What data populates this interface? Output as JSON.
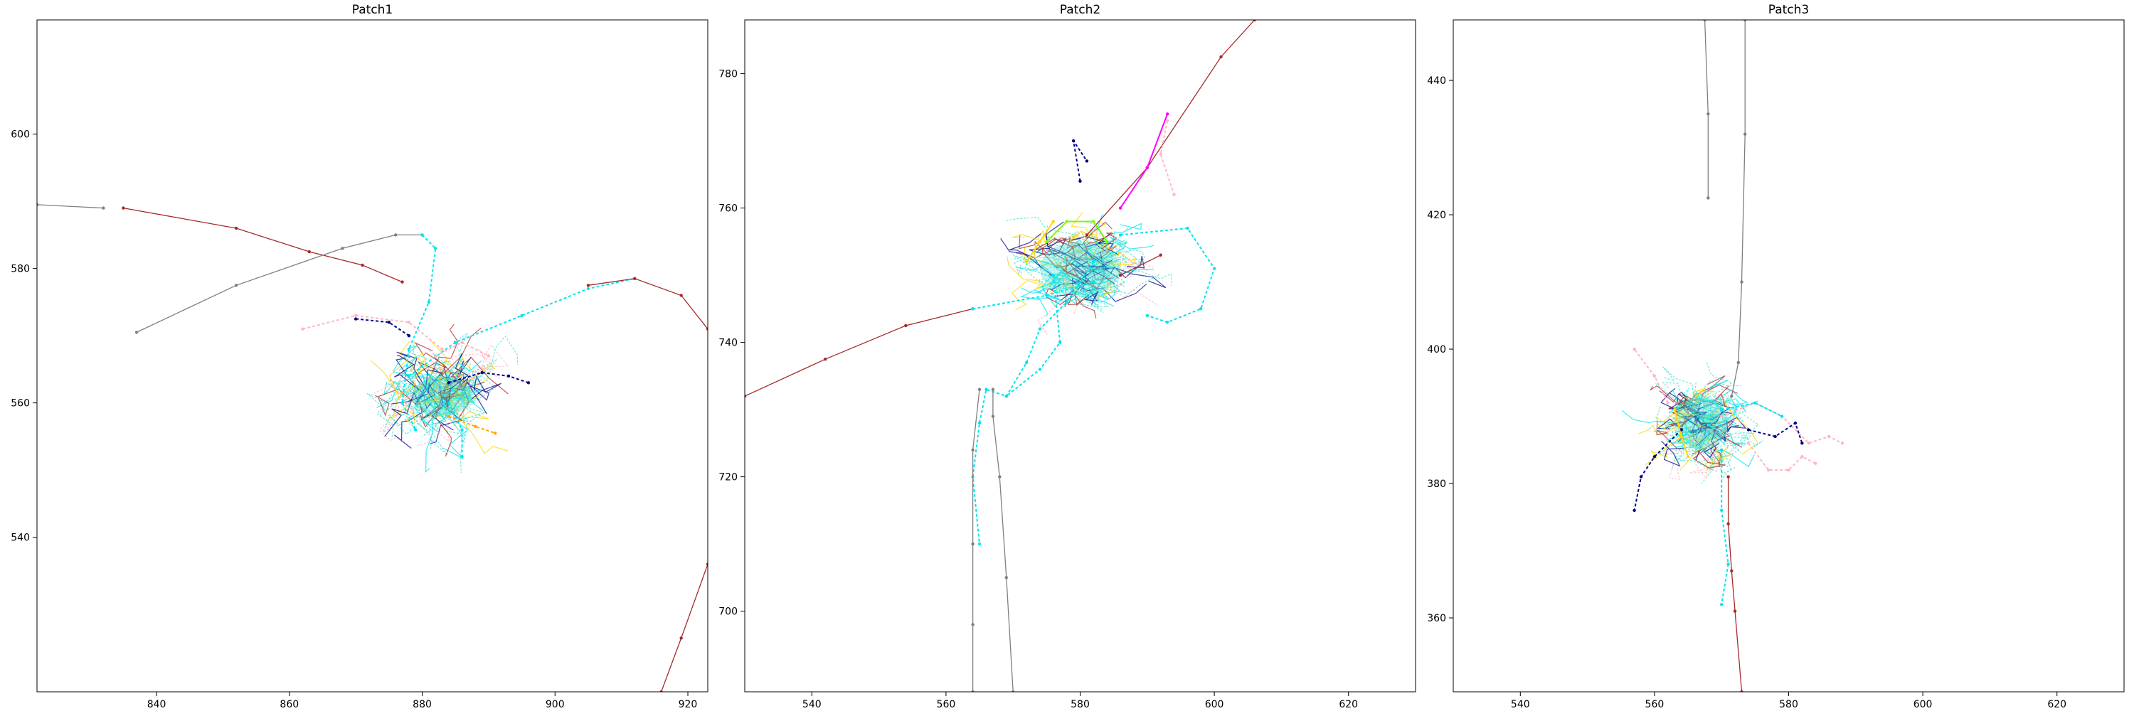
{
  "chart_data": [
    {
      "type": "line",
      "title": "Patch1",
      "xlim": [
        822,
        923
      ],
      "ylim": [
        517,
        617
      ],
      "xticks": [
        840,
        860,
        880,
        900,
        920
      ],
      "yticks": [
        540,
        560,
        580,
        600
      ],
      "cluster": {
        "center": [
          883,
          561
        ],
        "core_radius": [
          4.5,
          3
        ],
        "spread_radius": [
          9,
          9
        ]
      },
      "series": [
        {
          "color": "#7f7f7f",
          "points": [
            [
              822,
              589.5
            ],
            [
              832,
              589
            ]
          ]
        },
        {
          "color": "#a52a2a",
          "points": [
            [
              835,
              589
            ],
            [
              852,
              586
            ],
            [
              863,
              582.5
            ],
            [
              871,
              580.5
            ],
            [
              877,
              578
            ]
          ]
        },
        {
          "color": "#7f7f7f",
          "points": [
            [
              837,
              570.5
            ],
            [
              852,
              577.5
            ],
            [
              868,
              583
            ],
            [
              876,
              585
            ],
            [
              880,
              585
            ]
          ]
        },
        {
          "color": "#00e5ee",
          "points": [
            [
              880,
              585
            ],
            [
              882,
              583
            ],
            [
              881,
              575
            ],
            [
              878,
              568
            ],
            [
              877,
              560
            ],
            [
              879,
              556
            ]
          ]
        },
        {
          "color": "#00e5ee",
          "points": [
            [
              878,
              564
            ],
            [
              885,
              569
            ],
            [
              895,
              573
            ],
            [
              905,
              577
            ],
            [
              912,
              578.5
            ]
          ]
        },
        {
          "color": "#a52a2a",
          "points": [
            [
              905,
              577.5
            ],
            [
              912,
              578.5
            ],
            [
              919,
              576
            ],
            [
              923,
              571
            ]
          ]
        },
        {
          "color": "#a52a2a",
          "points": [
            [
              916,
              517
            ],
            [
              919,
              525
            ],
            [
              923,
              536
            ]
          ]
        },
        {
          "color": "#ffb6c1",
          "points": [
            [
              862,
              571
            ],
            [
              870,
              573
            ],
            [
              878,
              572
            ],
            [
              883,
              568
            ]
          ]
        },
        {
          "color": "#00008b",
          "points": [
            [
              870,
              572.5
            ],
            [
              875,
              572
            ],
            [
              878,
              570
            ]
          ]
        },
        {
          "color": "#00008b",
          "points": [
            [
              884,
              563
            ],
            [
              889,
              564.5
            ],
            [
              893,
              564
            ],
            [
              896,
              563
            ]
          ]
        },
        {
          "color": "#ffa500",
          "points": [
            [
              884,
              558
            ],
            [
              888,
              556.5
            ],
            [
              891,
              555.5
            ]
          ]
        },
        {
          "color": "#00e5ee",
          "points": [
            [
              884,
              560
            ],
            [
              886,
              556
            ],
            [
              886,
              552
            ]
          ]
        },
        {
          "color": "#ffb6c1",
          "points": [
            [
              882,
              567
            ],
            [
              886,
              569
            ],
            [
              890,
              567
            ]
          ]
        }
      ]
    },
    {
      "type": "line",
      "title": "Patch2",
      "xlim": [
        530,
        630
      ],
      "ylim": [
        688,
        788
      ],
      "xticks": [
        540,
        560,
        580,
        600,
        620
      ],
      "yticks": [
        700,
        720,
        740,
        760,
        780
      ],
      "cluster": {
        "center": [
          580,
          751
        ],
        "core_radius": [
          6,
          4
        ],
        "spread_radius": [
          9,
          6
        ]
      },
      "series": [
        {
          "color": "#a52a2a",
          "points": [
            [
              530,
              732
            ],
            [
              542,
              737.5
            ],
            [
              554,
              742.5
            ],
            [
              564,
              745
            ]
          ]
        },
        {
          "color": "#00e5ee",
          "points": [
            [
              564,
              745
            ],
            [
              575,
              747
            ],
            [
              582,
              749
            ]
          ]
        },
        {
          "color": "#a52a2a",
          "points": [
            [
              586,
              750
            ],
            [
              592,
              753
            ]
          ]
        },
        {
          "color": "#a52a2a",
          "points": [
            [
              581,
              756
            ],
            [
              590,
              766
            ],
            [
              601,
              782.5
            ],
            [
              606,
              788
            ]
          ]
        },
        {
          "color": "#ff00ff",
          "points": [
            [
              586,
              760
            ],
            [
              590,
              766
            ],
            [
              593,
              774
            ]
          ]
        },
        {
          "color": "#ffb6c1",
          "points": [
            [
              593,
              773
            ],
            [
              592,
              768
            ],
            [
              594,
              762
            ]
          ]
        },
        {
          "color": "#00e5ee",
          "points": [
            [
              582,
              752
            ],
            [
              578,
              746
            ],
            [
              574,
              742
            ],
            [
              572,
              737
            ],
            [
              569,
              732
            ],
            [
              566,
              733
            ],
            [
              565,
              728
            ],
            [
              564,
              720
            ],
            [
              565,
              710
            ]
          ]
        },
        {
          "color": "#00e5ee",
          "points": [
            [
              576,
              750
            ],
            [
              577,
              740
            ],
            [
              574,
              736
            ],
            [
              569,
              732
            ]
          ]
        },
        {
          "color": "#00e5ee",
          "points": [
            [
              586,
              756
            ],
            [
              596,
              757
            ],
            [
              600,
              751
            ],
            [
              598,
              745
            ],
            [
              593,
              743
            ],
            [
              590,
              744
            ]
          ]
        },
        {
          "color": "#7f7f7f",
          "points": [
            [
              565,
              733
            ],
            [
              564,
              724
            ],
            [
              564,
              710
            ],
            [
              564,
              698
            ],
            [
              564,
              688
            ]
          ]
        },
        {
          "color": "#7f7f7f",
          "points": [
            [
              567,
              733
            ],
            [
              567,
              729
            ],
            [
              568,
              720
            ],
            [
              569,
              705
            ],
            [
              570,
              688
            ]
          ]
        },
        {
          "color": "#00008b",
          "points": [
            [
              580,
              764
            ],
            [
              579,
              770
            ],
            [
              581,
              767
            ]
          ]
        },
        {
          "color": "#7cfc00",
          "points": [
            [
              575,
              755
            ],
            [
              578,
              758
            ],
            [
              582,
              758
            ],
            [
              584,
              755
            ]
          ]
        },
        {
          "color": "#ffd700",
          "points": [
            [
              572,
              752
            ],
            [
              574,
              755
            ],
            [
              576,
              758
            ]
          ]
        }
      ]
    },
    {
      "type": "line",
      "title": "Patch3",
      "xlim": [
        530,
        630
      ],
      "ylim": [
        349,
        449
      ],
      "xticks": [
        540,
        560,
        580,
        600,
        620
      ],
      "yticks": [
        360,
        380,
        400,
        420,
        440
      ],
      "cluster": {
        "center": [
          567,
          389
        ],
        "core_radius": [
          4,
          4
        ],
        "spread_radius": [
          8,
          6
        ]
      },
      "series": [
        {
          "color": "#7f7f7f",
          "points": [
            [
              567.5,
              449
            ],
            [
              568,
              435
            ],
            [
              568,
              422.5
            ]
          ]
        },
        {
          "color": "#7f7f7f",
          "points": [
            [
              573.5,
              449
            ],
            [
              573.5,
              432
            ],
            [
              573,
              410
            ],
            [
              572.5,
              398
            ],
            [
              571.5,
              393
            ]
          ]
        },
        {
          "color": "#a52a2a",
          "points": [
            [
              571,
              381
            ],
            [
              571,
              374
            ],
            [
              571.5,
              367
            ],
            [
              572,
              361
            ],
            [
              573,
              349
            ]
          ]
        },
        {
          "color": "#00e5ee",
          "points": [
            [
              570,
              385
            ],
            [
              570,
              376
            ],
            [
              571,
              368
            ],
            [
              570,
              362
            ]
          ]
        },
        {
          "color": "#ffb6c1",
          "points": [
            [
              570,
              390
            ],
            [
              575,
              392
            ],
            [
              579,
              390
            ],
            [
              583,
              386
            ],
            [
              586,
              387
            ],
            [
              588,
              386
            ]
          ]
        },
        {
          "color": "#ffb6c1",
          "points": [
            [
              562,
              392
            ],
            [
              560,
              396
            ],
            [
              557,
              400
            ]
          ]
        },
        {
          "color": "#ffb6c1",
          "points": [
            [
              574,
              386
            ],
            [
              577,
              382
            ],
            [
              580,
              382
            ],
            [
              582,
              384
            ],
            [
              584,
              383
            ]
          ]
        },
        {
          "color": "#00008b",
          "points": [
            [
              564,
              388
            ],
            [
              560,
              384
            ],
            [
              558,
              381
            ],
            [
              557,
              376
            ]
          ]
        },
        {
          "color": "#00008b",
          "points": [
            [
              574,
              388
            ],
            [
              578,
              387
            ],
            [
              581,
              389
            ],
            [
              582,
              386
            ]
          ]
        },
        {
          "color": "#ffd700",
          "points": [
            [
              563,
              391
            ],
            [
              564,
              387
            ],
            [
              565,
              384
            ]
          ]
        },
        {
          "color": "#00e5ee",
          "points": [
            [
              570,
              391
            ],
            [
              575,
              392
            ],
            [
              579,
              390
            ]
          ]
        }
      ]
    }
  ]
}
